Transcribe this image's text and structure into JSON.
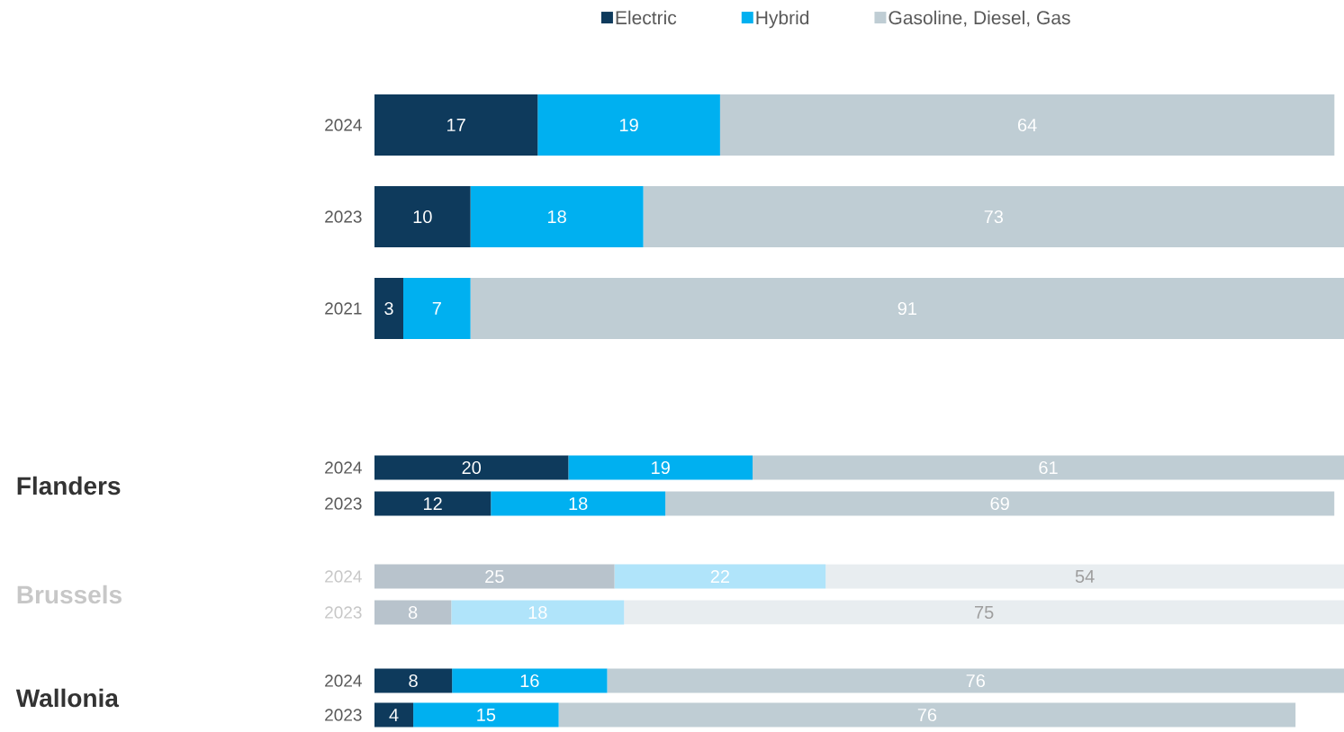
{
  "chart_data": [
    {
      "type": "bar",
      "orientation": "horizontal",
      "stacked": true,
      "categories": [
        "2024",
        "2023",
        "2021"
      ],
      "tick_labels": "y",
      "data_labels": true,
      "legend": "top",
      "series": [
        {
          "name": "Electric",
          "color": "#0e3a5c",
          "values": [
            17,
            10,
            3
          ]
        },
        {
          "name": "Hybrid",
          "color": "#00b0f0",
          "values": [
            19,
            18,
            7
          ]
        },
        {
          "name": "Gasoline, Diesel, Gas",
          "color": "#bfcdd4",
          "values": [
            64,
            73,
            91
          ]
        }
      ]
    },
    {
      "type": "bar",
      "orientation": "horizontal",
      "stacked": true,
      "ylabel": "Flanders",
      "categories": [
        "2024",
        "2023"
      ],
      "tick_labels": "y",
      "data_labels": true,
      "series": [
        {
          "color": "#0e3a5c",
          "values": [
            20,
            12
          ]
        },
        {
          "color": "#00b0f0",
          "values": [
            19,
            18
          ]
        },
        {
          "color": "#bfcdd4",
          "values": [
            61,
            69
          ]
        }
      ]
    },
    {
      "type": "bar",
      "orientation": "horizontal",
      "stacked": true,
      "ylabel": "Brussels",
      "categories": [
        "2024",
        "2023"
      ],
      "tick_labels": "y",
      "data_labels": true,
      "series": [
        {
          "color": "#b8c3cc",
          "values": [
            25,
            8
          ]
        },
        {
          "color": "#b0e4fa",
          "values": [
            22,
            18
          ]
        },
        {
          "color": "#e8edf0",
          "values": [
            54,
            75
          ]
        }
      ]
    },
    {
      "type": "bar",
      "orientation": "horizontal",
      "stacked": true,
      "ylabel": "Wallonia",
      "categories": [
        "2024",
        "2023"
      ],
      "tick_labels": "y",
      "data_labels": true,
      "series": [
        {
          "color": "#0e3a5c",
          "values": [
            8,
            4
          ]
        },
        {
          "color": "#00b0f0",
          "values": [
            16,
            15
          ]
        },
        {
          "color": "#bfcdd4",
          "values": [
            76,
            76
          ]
        }
      ]
    }
  ]
}
